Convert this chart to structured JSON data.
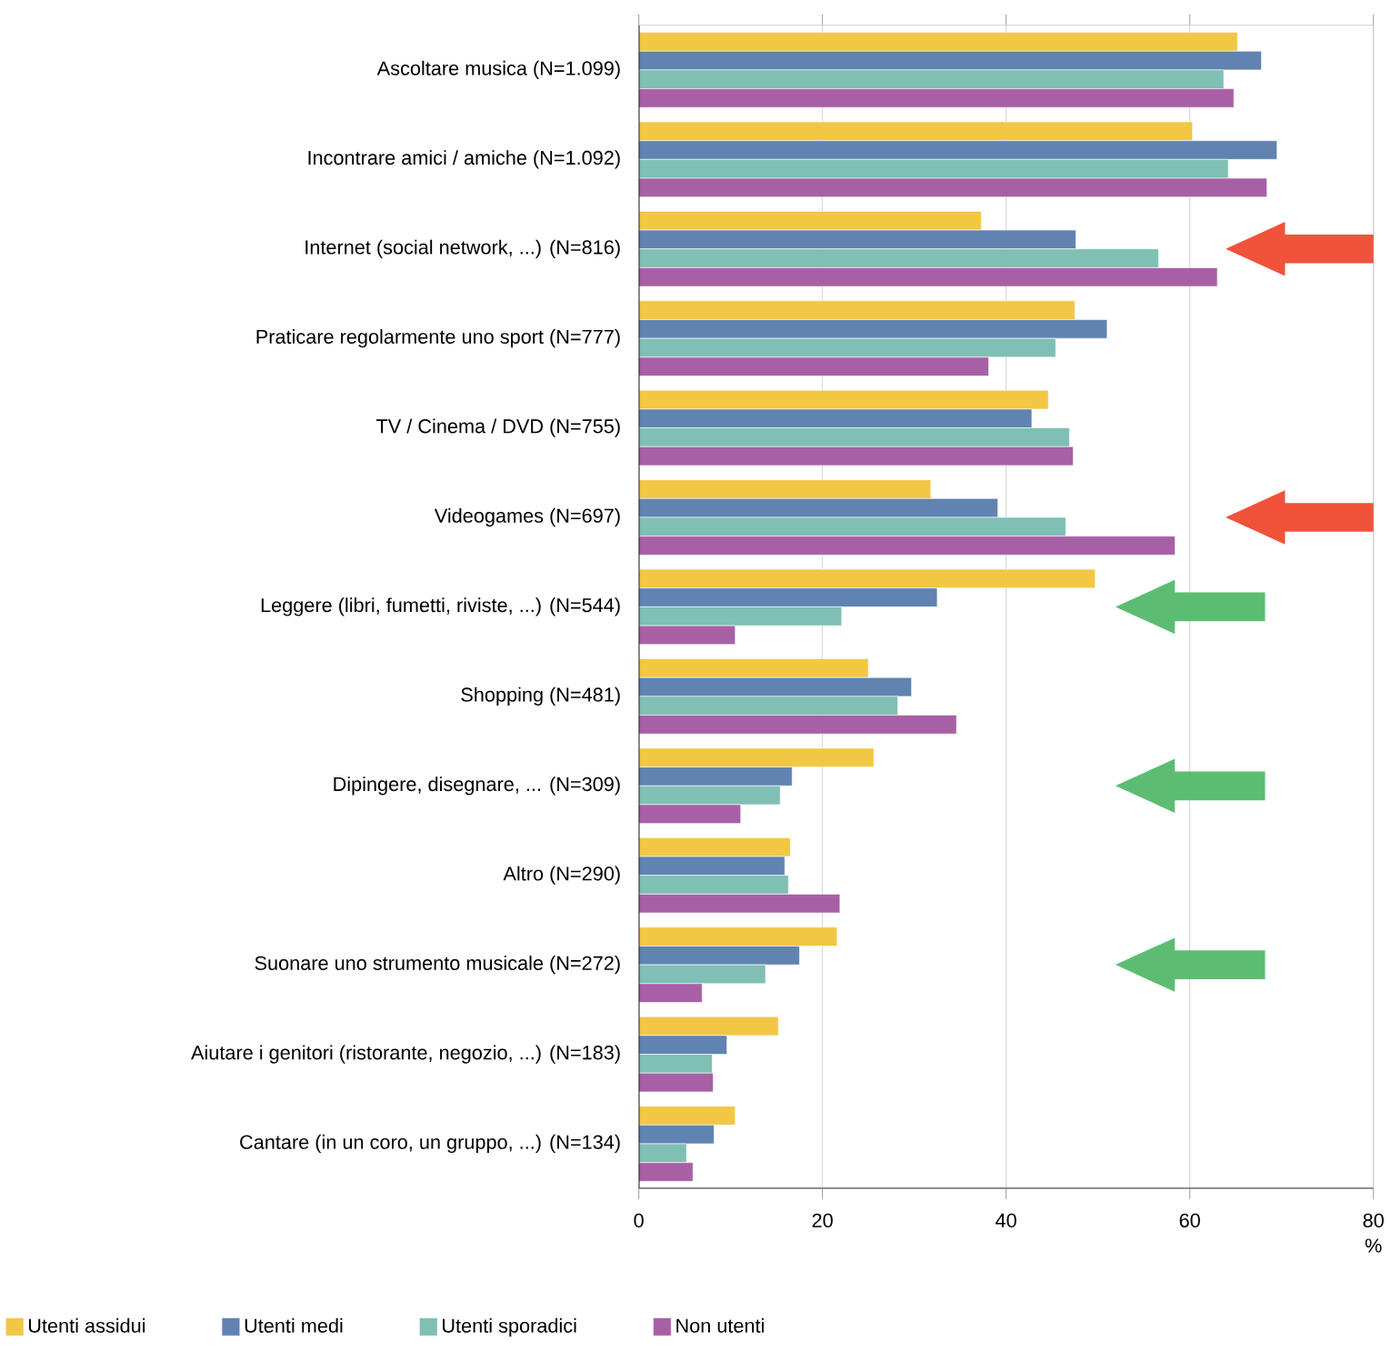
{
  "chart_data": {
    "type": "bar",
    "orientation": "horizontal",
    "categories": [
      "Ascoltare musica (N=1.099)",
      "Incontrare amici / amiche (N=1.092)",
      "Internet (social network, ...) (N=816)",
      "Praticare regolarmente uno sport (N=777)",
      "TV / Cinema / DVD (N=755)",
      "Videogames (N=697)",
      "Leggere (libri, fumetti, riviste, ...) (N=544)",
      "Shopping (N=481)",
      "Dipingere, disegnare, ... (N=309)",
      "Altro  (N=290)",
      "Suonare uno strumento musicale  (N=272)",
      "Aiutare i genitori (ristorante, negozio, ...) (N=183)",
      "Cantare (in un coro, un gruppo, ...) (N=134)"
    ],
    "series": [
      {
        "name": "Utenti assidui",
        "color": "#f2c744",
        "values": [
          65.2,
          60.3,
          37.3,
          47.5,
          44.6,
          31.8,
          49.7,
          25.0,
          25.6,
          16.5,
          21.6,
          15.2,
          10.5
        ]
      },
      {
        "name": "Utenti medi",
        "color": "#6183b2",
        "values": [
          67.8,
          69.5,
          47.6,
          51.0,
          42.8,
          39.1,
          32.5,
          29.7,
          16.7,
          15.9,
          17.5,
          9.6,
          8.2
        ]
      },
      {
        "name": "Utenti sporadici",
        "color": "#7fbfb4",
        "values": [
          63.7,
          64.2,
          56.6,
          45.4,
          46.9,
          46.5,
          22.1,
          28.2,
          15.4,
          16.3,
          13.8,
          8.0,
          5.2
        ]
      },
      {
        "name": "Non utenti",
        "color": "#a860a5",
        "values": [
          64.8,
          68.4,
          63.0,
          38.1,
          47.3,
          58.4,
          10.5,
          34.6,
          11.1,
          21.9,
          6.9,
          8.1,
          5.9
        ]
      }
    ],
    "xlim": [
      0,
      80
    ],
    "xticks": [
      0,
      20,
      40,
      60,
      80
    ],
    "xlabel": "%",
    "grid": "x",
    "legend": "bottom"
  }
}
